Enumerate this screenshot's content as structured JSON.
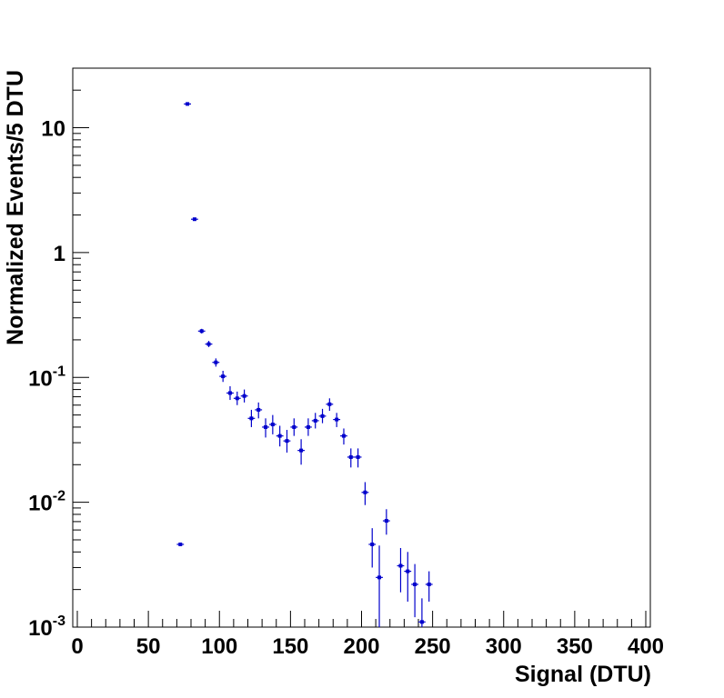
{
  "chart_data": {
    "type": "scatter",
    "title": "",
    "xlabel": "Signal (DTU)",
    "ylabel": "Normalized Events/5 DTU",
    "xlim": [
      0,
      400
    ],
    "ylim": [
      0.001,
      30
    ],
    "y_scale": "log",
    "grid": false,
    "x_ticks": [
      {
        "value": 0,
        "label": "0"
      },
      {
        "value": 50,
        "label": "50"
      },
      {
        "value": 100,
        "label": "100"
      },
      {
        "value": 150,
        "label": "150"
      },
      {
        "value": 200,
        "label": "200"
      },
      {
        "value": 250,
        "label": "250"
      },
      {
        "value": 300,
        "label": "300"
      },
      {
        "value": 350,
        "label": "350"
      },
      {
        "value": 400,
        "label": "400"
      }
    ],
    "y_ticks": [
      {
        "value": 0.001,
        "mantissa": "10",
        "exponent": "-3"
      },
      {
        "value": 0.01,
        "mantissa": "10",
        "exponent": "-2"
      },
      {
        "value": 0.1,
        "mantissa": "10",
        "exponent": "-1"
      },
      {
        "value": 1,
        "mantissa": "1",
        "exponent": ""
      },
      {
        "value": 10,
        "mantissa": "10",
        "exponent": ""
      }
    ],
    "marker_color": "#0000cc",
    "bin_width": 5,
    "points": [
      {
        "x": 72.5,
        "y": 0.0046,
        "lo": 0.0046,
        "hi": 0.0046
      },
      {
        "x": 77.5,
        "y": 15.5,
        "lo": 15.5,
        "hi": 15.5
      },
      {
        "x": 82.5,
        "y": 1.85,
        "lo": 1.85,
        "hi": 1.85
      },
      {
        "x": 87.5,
        "y": 0.235,
        "lo": 0.225,
        "hi": 0.245
      },
      {
        "x": 92.5,
        "y": 0.185,
        "lo": 0.175,
        "hi": 0.196
      },
      {
        "x": 97.5,
        "y": 0.132,
        "lo": 0.122,
        "hi": 0.142
      },
      {
        "x": 102.5,
        "y": 0.102,
        "lo": 0.092,
        "hi": 0.113
      },
      {
        "x": 107.5,
        "y": 0.075,
        "lo": 0.066,
        "hi": 0.085
      },
      {
        "x": 112.5,
        "y": 0.068,
        "lo": 0.06,
        "hi": 0.077
      },
      {
        "x": 117.5,
        "y": 0.071,
        "lo": 0.063,
        "hi": 0.08
      },
      {
        "x": 122.5,
        "y": 0.047,
        "lo": 0.04,
        "hi": 0.055
      },
      {
        "x": 127.5,
        "y": 0.055,
        "lo": 0.047,
        "hi": 0.063
      },
      {
        "x": 132.5,
        "y": 0.04,
        "lo": 0.033,
        "hi": 0.047
      },
      {
        "x": 137.5,
        "y": 0.042,
        "lo": 0.035,
        "hi": 0.05
      },
      {
        "x": 142.5,
        "y": 0.034,
        "lo": 0.028,
        "hi": 0.041
      },
      {
        "x": 147.5,
        "y": 0.031,
        "lo": 0.025,
        "hi": 0.038
      },
      {
        "x": 152.5,
        "y": 0.04,
        "lo": 0.034,
        "hi": 0.047
      },
      {
        "x": 157.5,
        "y": 0.026,
        "lo": 0.02,
        "hi": 0.032
      },
      {
        "x": 162.5,
        "y": 0.04,
        "lo": 0.034,
        "hi": 0.047
      },
      {
        "x": 167.5,
        "y": 0.045,
        "lo": 0.039,
        "hi": 0.052
      },
      {
        "x": 172.5,
        "y": 0.049,
        "lo": 0.043,
        "hi": 0.056
      },
      {
        "x": 177.5,
        "y": 0.061,
        "lo": 0.054,
        "hi": 0.068
      },
      {
        "x": 182.5,
        "y": 0.046,
        "lo": 0.04,
        "hi": 0.052
      },
      {
        "x": 187.5,
        "y": 0.034,
        "lo": 0.029,
        "hi": 0.039
      },
      {
        "x": 192.5,
        "y": 0.023,
        "lo": 0.019,
        "hi": 0.027
      },
      {
        "x": 197.5,
        "y": 0.023,
        "lo": 0.019,
        "hi": 0.027
      },
      {
        "x": 202.5,
        "y": 0.012,
        "lo": 0.0095,
        "hi": 0.0145
      },
      {
        "x": 207.5,
        "y": 0.0046,
        "lo": 0.003,
        "hi": 0.0062
      },
      {
        "x": 212.5,
        "y": 0.0025,
        "lo": 0.001,
        "hi": 0.0045
      },
      {
        "x": 217.5,
        "y": 0.0071,
        "lo": 0.0055,
        "hi": 0.0088
      },
      {
        "x": 227.5,
        "y": 0.0031,
        "lo": 0.0019,
        "hi": 0.0043
      },
      {
        "x": 232.5,
        "y": 0.0028,
        "lo": 0.0016,
        "hi": 0.004
      },
      {
        "x": 237.5,
        "y": 0.0022,
        "lo": 0.0012,
        "hi": 0.0032
      },
      {
        "x": 242.5,
        "y": 0.0011,
        "lo": 0.001,
        "hi": 0.0017
      },
      {
        "x": 247.5,
        "y": 0.0022,
        "lo": 0.0016,
        "hi": 0.0028
      }
    ]
  }
}
